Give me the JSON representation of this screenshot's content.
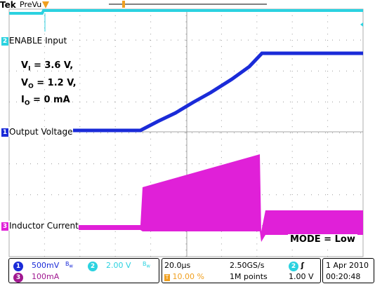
{
  "header": {
    "logo": "Tek",
    "mode": "PreVu"
  },
  "channels": [
    {
      "num": "2",
      "label": "ENABLE Input",
      "color": "#2bd2e0"
    },
    {
      "num": "1",
      "label": "Output Voltage",
      "color": "#1a2bd8"
    },
    {
      "num": "3",
      "label": "Inductor Current",
      "color": "#e020d8"
    }
  ],
  "params": {
    "vi_label": "V",
    "vi_sub": "I",
    "vi_val": "= 3.6 V,",
    "vo_label": "V",
    "vo_sub": "O",
    "vo_val": "= 1.2 V,",
    "io_label": "I",
    "io_sub": "O",
    "io_val": "= 0 mA"
  },
  "mode_text": "MODE = Low",
  "status": {
    "ch1_num": "1",
    "ch1_scale": "500mV",
    "ch2_num": "2",
    "ch2_scale": "2.00 V",
    "ch3_num": "3",
    "ch3_scale": "100mA",
    "timebase": "20.0µs",
    "trigger_pos": "10.00 %",
    "sample_rate": "2.50GS/s",
    "record_length": "1M points",
    "trig_ch": "2",
    "trig_slope": "ʃ",
    "trig_level": "1.00 V",
    "date": "1 Apr  2010",
    "time": "00:20:48"
  }
}
